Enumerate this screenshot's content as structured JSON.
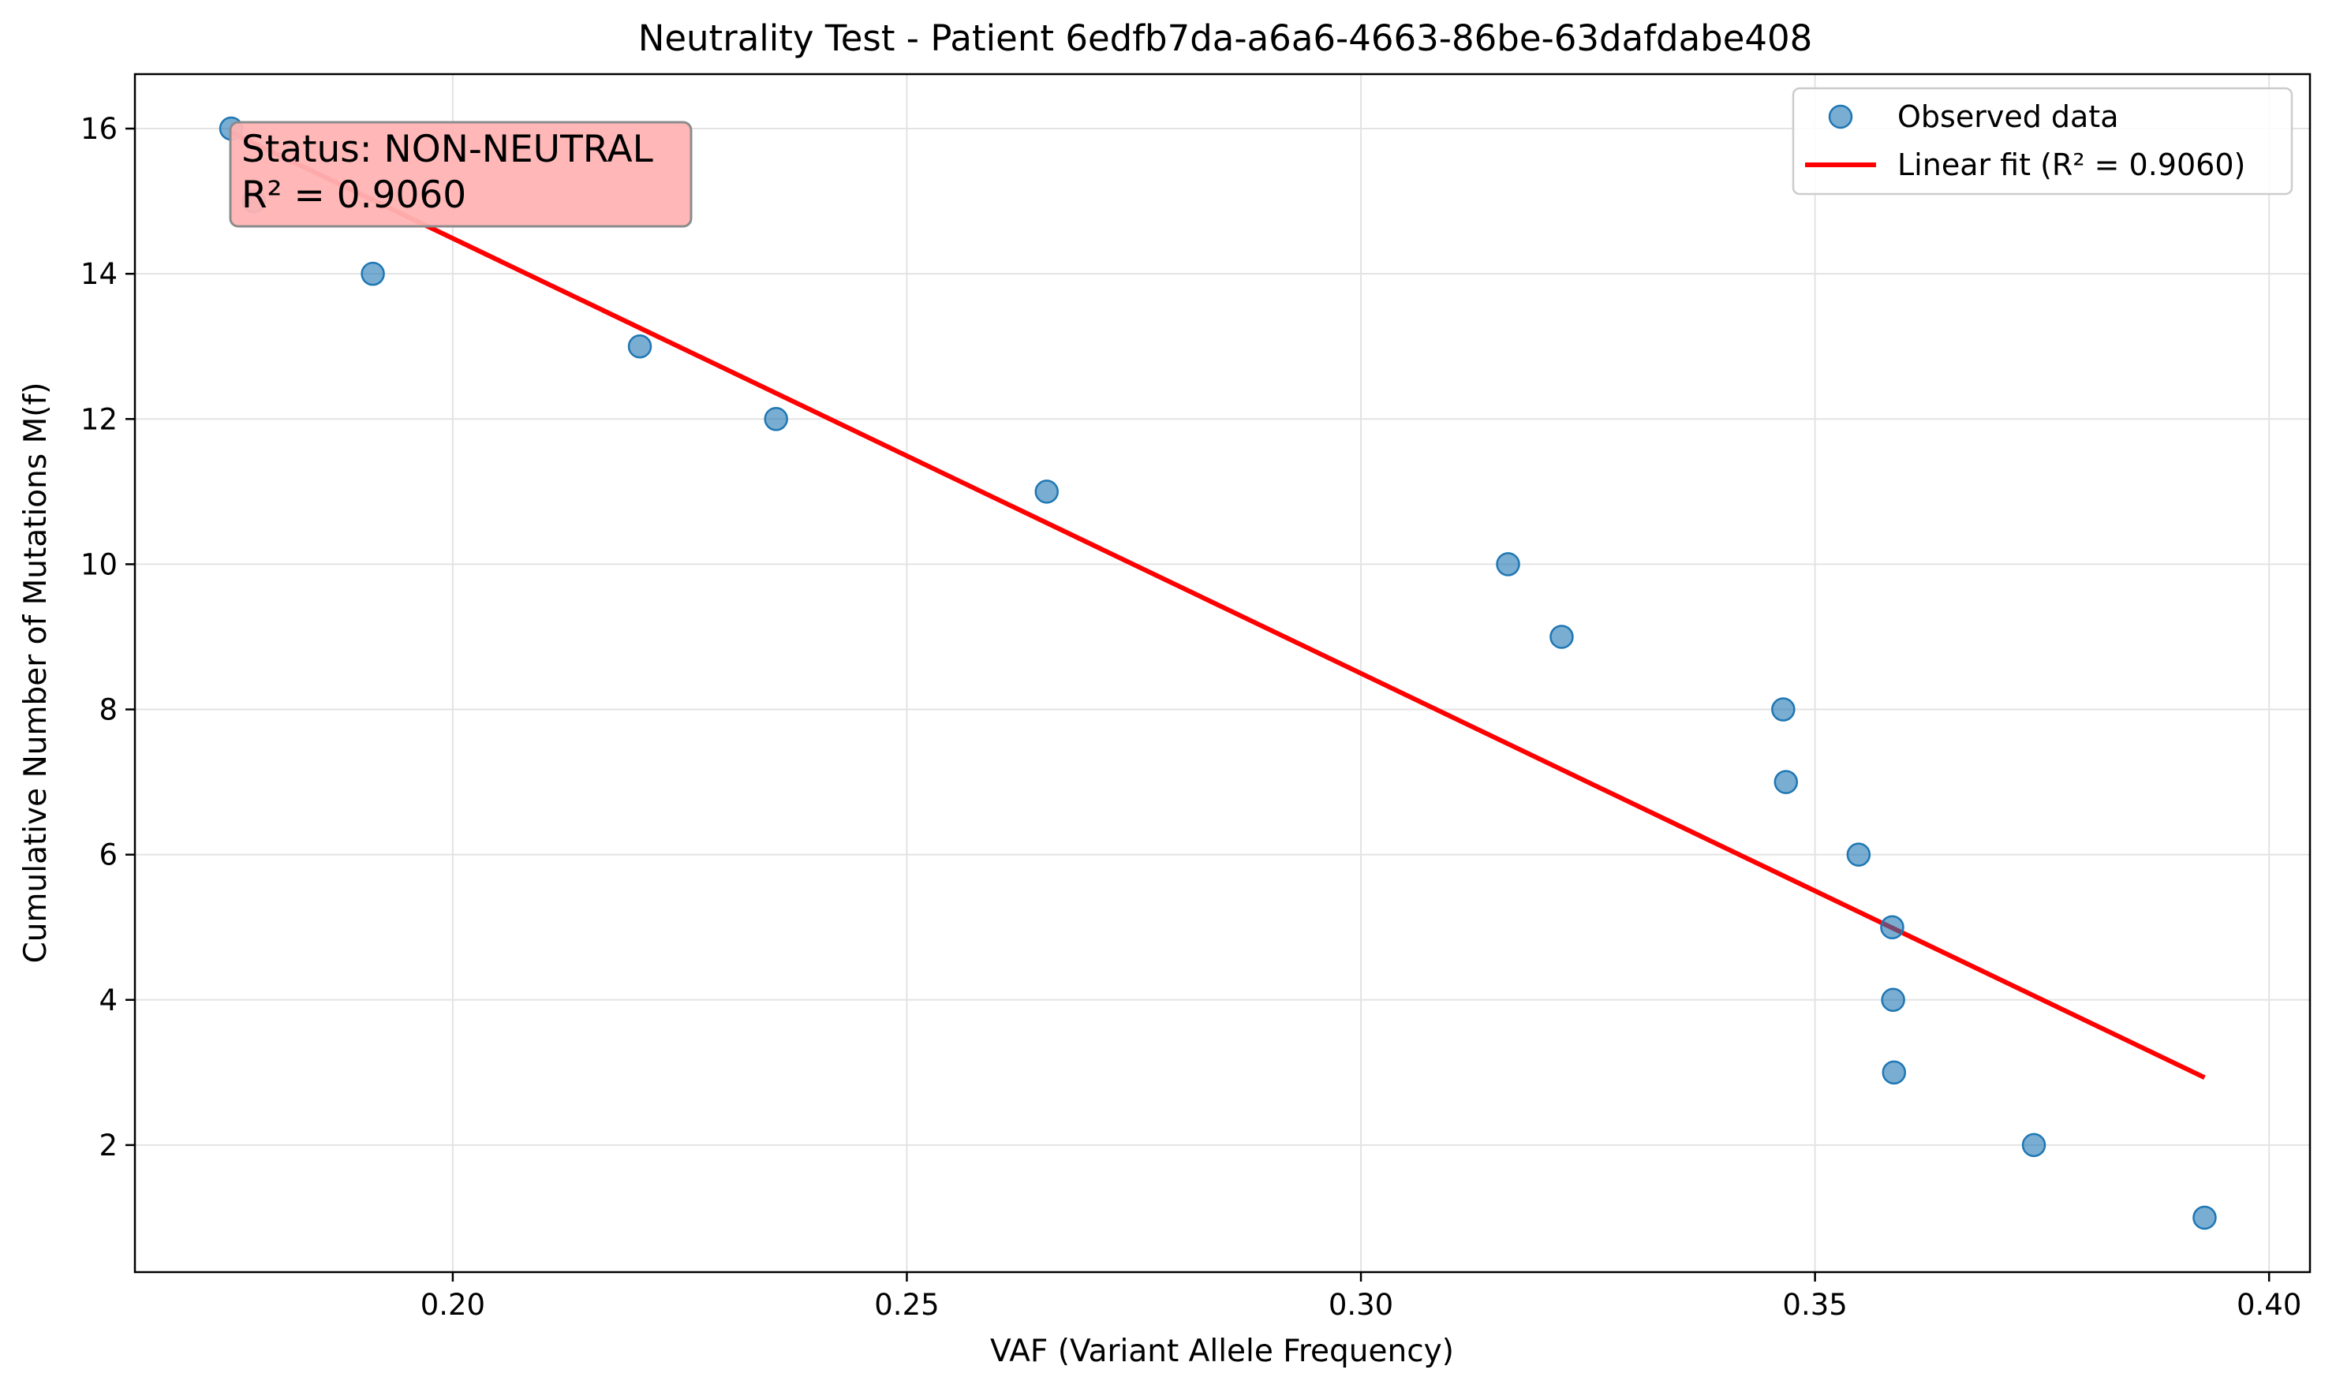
{
  "chart_data": {
    "type": "scatter",
    "title": "Neutrality Test - Patient 6edfb7da-a6a6-4663-86be-63dafdabe408",
    "xlabel": "VAF (Variant Allele Frequency)",
    "ylabel": "Cumulative Number of Mutations M(f)",
    "xlim": [
      0.165,
      0.4045
    ],
    "ylim": [
      0.25,
      16.75
    ],
    "x_ticks": [
      "0.20",
      "0.25",
      "0.30",
      "0.35",
      "0.40"
    ],
    "y_ticks": [
      "2",
      "4",
      "6",
      "8",
      "10",
      "12",
      "14",
      "16"
    ],
    "grid": true,
    "legend_position": "top-right",
    "series": [
      {
        "name": "Observed data",
        "kind": "scatter",
        "color": "#1f77b4",
        "points": [
          {
            "x": 0.1756,
            "y": 16
          },
          {
            "x": 0.1781,
            "y": 15
          },
          {
            "x": 0.1912,
            "y": 14
          },
          {
            "x": 0.2206,
            "y": 13
          },
          {
            "x": 0.2356,
            "y": 12
          },
          {
            "x": 0.2654,
            "y": 11
          },
          {
            "x": 0.3162,
            "y": 10
          },
          {
            "x": 0.3221,
            "y": 9
          },
          {
            "x": 0.3465,
            "y": 8
          },
          {
            "x": 0.3468,
            "y": 7
          },
          {
            "x": 0.3548,
            "y": 6
          },
          {
            "x": 0.3585,
            "y": 5
          },
          {
            "x": 0.3586,
            "y": 4
          },
          {
            "x": 0.3587,
            "y": 3
          },
          {
            "x": 0.3741,
            "y": 2
          },
          {
            "x": 0.3929,
            "y": 1
          }
        ]
      },
      {
        "name": "Linear fit (R² = 0.9060)",
        "kind": "line",
        "color": "#ff0000",
        "points": [
          {
            "x": 0.1756,
            "y": 15.95
          },
          {
            "x": 0.3929,
            "y": 2.93
          }
        ]
      }
    ],
    "annotation": {
      "lines": [
        "Status: NON-NEUTRAL",
        "R² = 0.9060"
      ],
      "background": "#ffb3b3",
      "border": "#999999"
    }
  }
}
